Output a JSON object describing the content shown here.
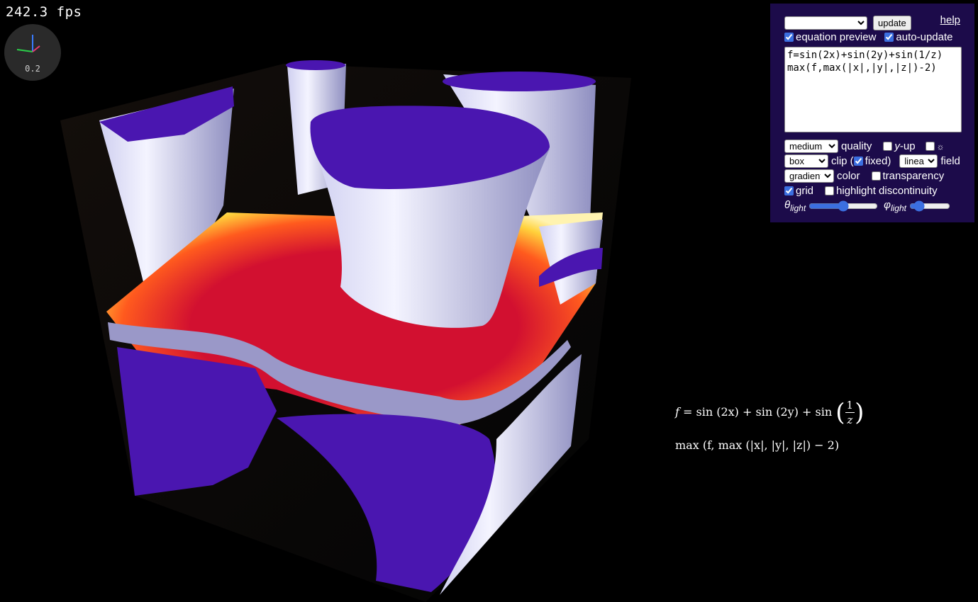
{
  "fps": "242.3 fps",
  "axis_widget": {
    "scale": "0.2",
    "x_color": "#e83a6e",
    "y_color": "#2ccf4a",
    "z_color": "#3a7cff"
  },
  "panel": {
    "preset_value": "",
    "update_label": "update",
    "help_label": "help",
    "equation_preview": {
      "label": "equation preview",
      "checked": true
    },
    "auto_update": {
      "label": "auto-update",
      "checked": true
    },
    "equation_text": "f=sin(2x)+sin(2y)+sin(1/z)\nmax(f,max(|x|,|y|,|z|)-2)",
    "quality": {
      "value": "medium",
      "label": "quality"
    },
    "y_up": {
      "label_var": "y",
      "label_rest": "-up",
      "checked": false
    },
    "light_toggle": {
      "label": "☼",
      "checked": false
    },
    "clip": {
      "value": "box",
      "label_pre": "clip (",
      "fixed_label": "fixed)",
      "fixed_checked": true
    },
    "field": {
      "value": "linear",
      "label": "field"
    },
    "color": {
      "value": "gradient",
      "label": "color"
    },
    "transparency": {
      "label": "transparency",
      "checked": false
    },
    "grid": {
      "label": "grid",
      "checked": true
    },
    "highlight_discontinuity": {
      "label": "highlight discontinuity",
      "checked": false
    },
    "theta_light": {
      "symbol": "θ",
      "sub": "light",
      "value": 0.5
    },
    "phi_light": {
      "symbol": "φ",
      "sub": "light",
      "value": 0.15
    }
  },
  "preview": {
    "line1": {
      "lhs": "f",
      "eq": "=",
      "t1": "sin (2x)",
      "plus1": "+",
      "t2": "sin (2y)",
      "plus2": "+",
      "t3": "sin",
      "num": "1",
      "den": "z"
    },
    "line2": "max (f, max (|x|, |y|, |z|) − 2)"
  },
  "colors": {
    "panel_bg": "#1c0b4a",
    "surface_blue": "#4a16b0",
    "surface_red": "#d21030",
    "surface_yellow": "#ffd23c"
  }
}
